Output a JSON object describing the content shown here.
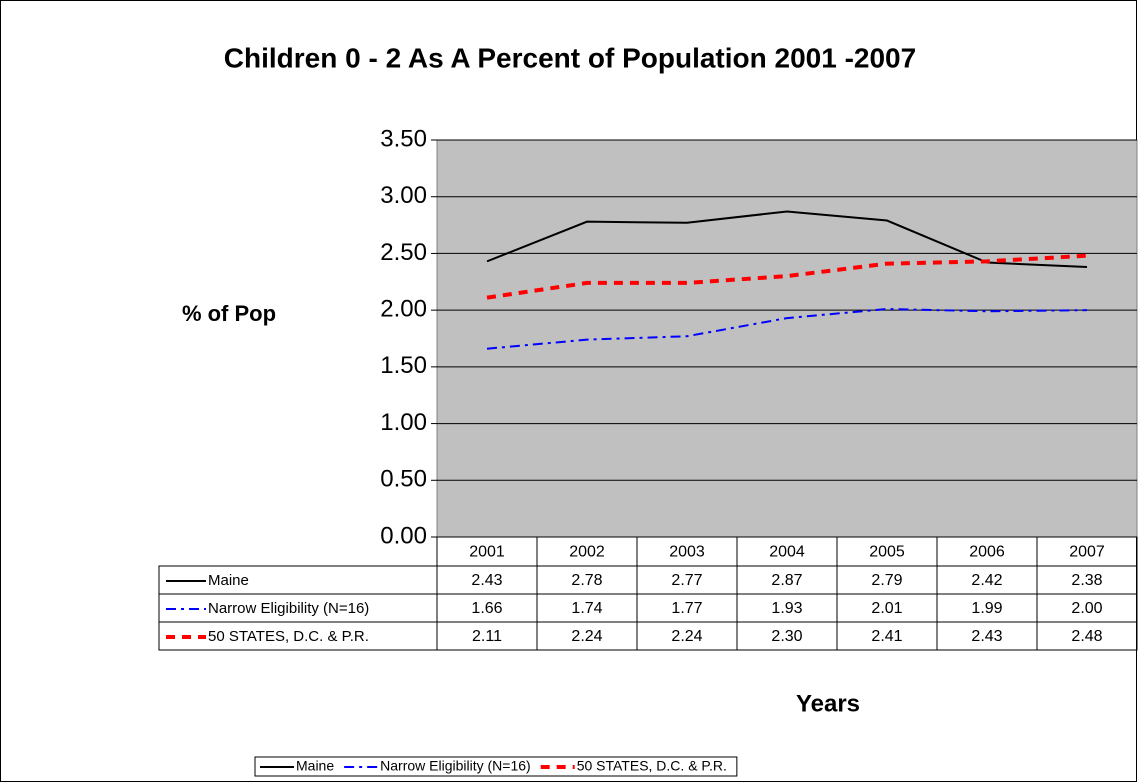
{
  "chart_data": {
    "type": "line",
    "title": "Children 0 - 2 As A Percent of Population 2001 -2007",
    "y_label": "% of Pop",
    "x_label": "Years",
    "categories": [
      "2001",
      "2002",
      "2003",
      "2004",
      "2005",
      "2006",
      "2007"
    ],
    "series": [
      {
        "name": "Maine",
        "color": "#000000",
        "dash": "solid",
        "values": [
          2.43,
          2.78,
          2.77,
          2.87,
          2.79,
          2.42,
          2.38
        ],
        "value_labels": [
          "2.43",
          "2.78",
          "2.77",
          "2.87",
          "2.79",
          "2.42",
          "2.38"
        ]
      },
      {
        "name": "Narrow Eligibility (N=16)",
        "color": "#0000ff",
        "dash": "dashdot",
        "values": [
          1.66,
          1.74,
          1.77,
          1.93,
          2.01,
          1.99,
          2.0
        ],
        "value_labels": [
          "1.66",
          "1.74",
          "1.77",
          "1.93",
          "2.01",
          "1.99",
          "2.00"
        ]
      },
      {
        "name": "50 STATES, D.C. & P.R.",
        "color": "#ff0000",
        "dash": "dash",
        "values": [
          2.11,
          2.24,
          2.24,
          2.3,
          2.41,
          2.43,
          2.48
        ],
        "value_labels": [
          "2.11",
          "2.24",
          "2.24",
          "2.30",
          "2.41",
          "2.43",
          "2.48"
        ]
      }
    ],
    "ylim": [
      0,
      3.5
    ],
    "yticks": [
      {
        "value": 0,
        "label": "0.00"
      },
      {
        "value": 0.5,
        "label": "0.50"
      },
      {
        "value": 1,
        "label": "1.00"
      },
      {
        "value": 1.5,
        "label": "1.50"
      },
      {
        "value": 2,
        "label": "2.00"
      },
      {
        "value": 2.5,
        "label": "2.50"
      },
      {
        "value": 3,
        "label": "3.00"
      },
      {
        "value": 3.5,
        "label": "3.50"
      }
    ],
    "grid": true,
    "plot_background": "#c0c0c0",
    "legend": "bottom"
  }
}
